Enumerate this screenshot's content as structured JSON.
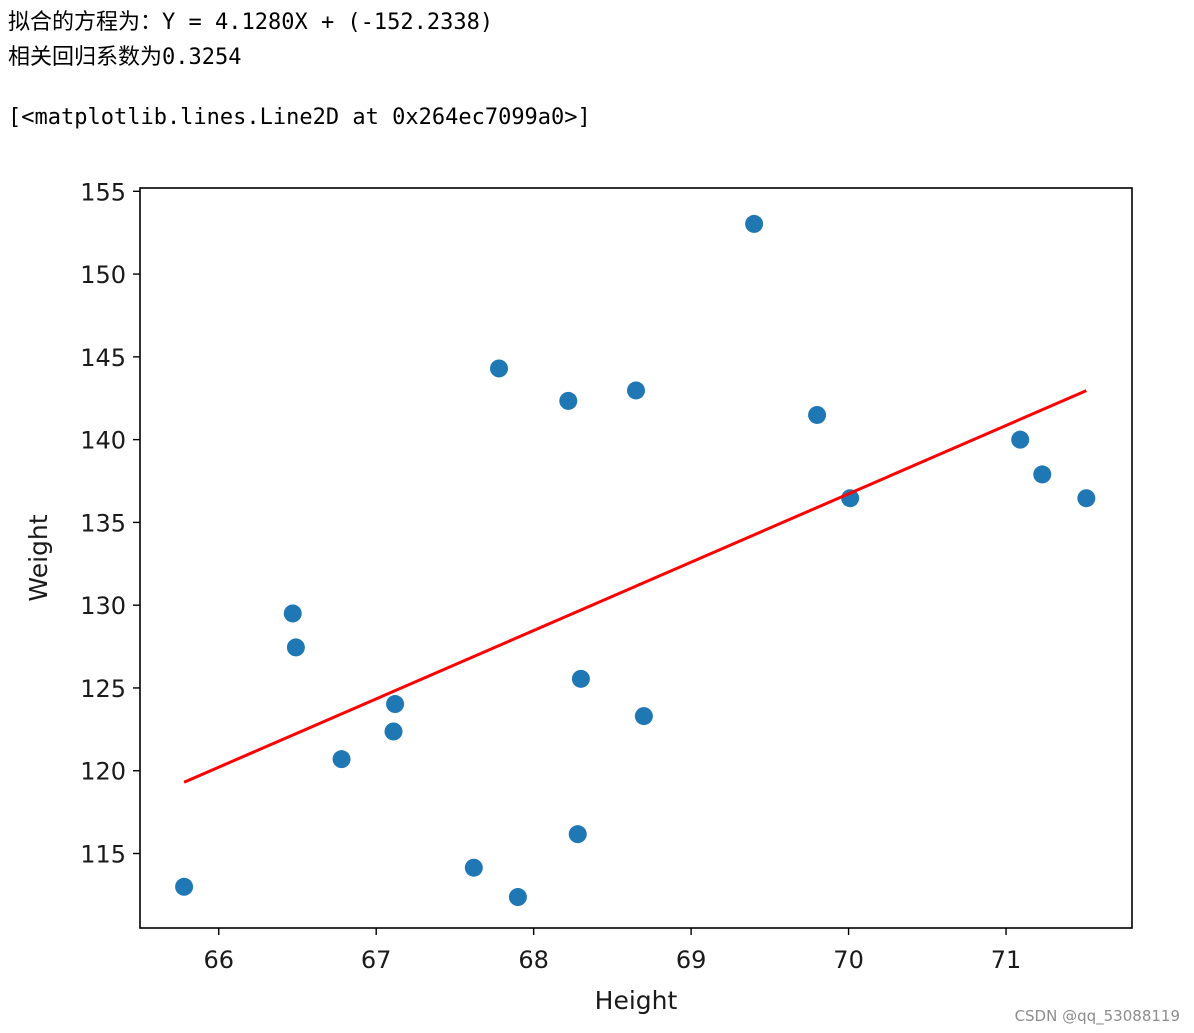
{
  "output": {
    "line1": "拟合的方程为：Y = 4.1280X + (-152.2338)",
    "line2": "相关回归系数为0.3254",
    "line3": "[<matplotlib.lines.Line2D at 0x264ec7099a0>]"
  },
  "chart_data": {
    "type": "scatter",
    "title": "",
    "xlabel": "Height",
    "ylabel": "Weight",
    "xlim": [
      65.5,
      71.8
    ],
    "ylim": [
      110.5,
      155.2
    ],
    "xticks": [
      66,
      67,
      68,
      69,
      70,
      71
    ],
    "yticks": [
      115,
      120,
      125,
      130,
      135,
      140,
      145,
      150,
      155
    ],
    "grid": false,
    "series": [
      {
        "kind": "points",
        "color": "#1f77b4",
        "points": [
          [
            65.78,
            112.99
          ],
          [
            66.47,
            129.5
          ],
          [
            66.49,
            127.45
          ],
          [
            66.78,
            120.7
          ],
          [
            67.11,
            122.37
          ],
          [
            67.12,
            124.03
          ],
          [
            67.62,
            114.14
          ],
          [
            67.78,
            144.3
          ],
          [
            67.9,
            112.37
          ],
          [
            68.22,
            142.34
          ],
          [
            68.28,
            116.17
          ],
          [
            68.3,
            125.55
          ],
          [
            68.65,
            142.97
          ],
          [
            68.7,
            123.3
          ],
          [
            69.4,
            153.03
          ],
          [
            69.8,
            141.49
          ],
          [
            70.01,
            136.46
          ],
          [
            71.09,
            140.0
          ],
          [
            71.23,
            137.9
          ],
          [
            71.51,
            136.46
          ]
        ]
      },
      {
        "kind": "fit-line",
        "color": "#ff0000",
        "slope": 4.128,
        "intercept": -152.2338,
        "x_range": [
          65.78,
          71.51
        ]
      }
    ]
  },
  "watermark": "CSDN @qq_53088119"
}
